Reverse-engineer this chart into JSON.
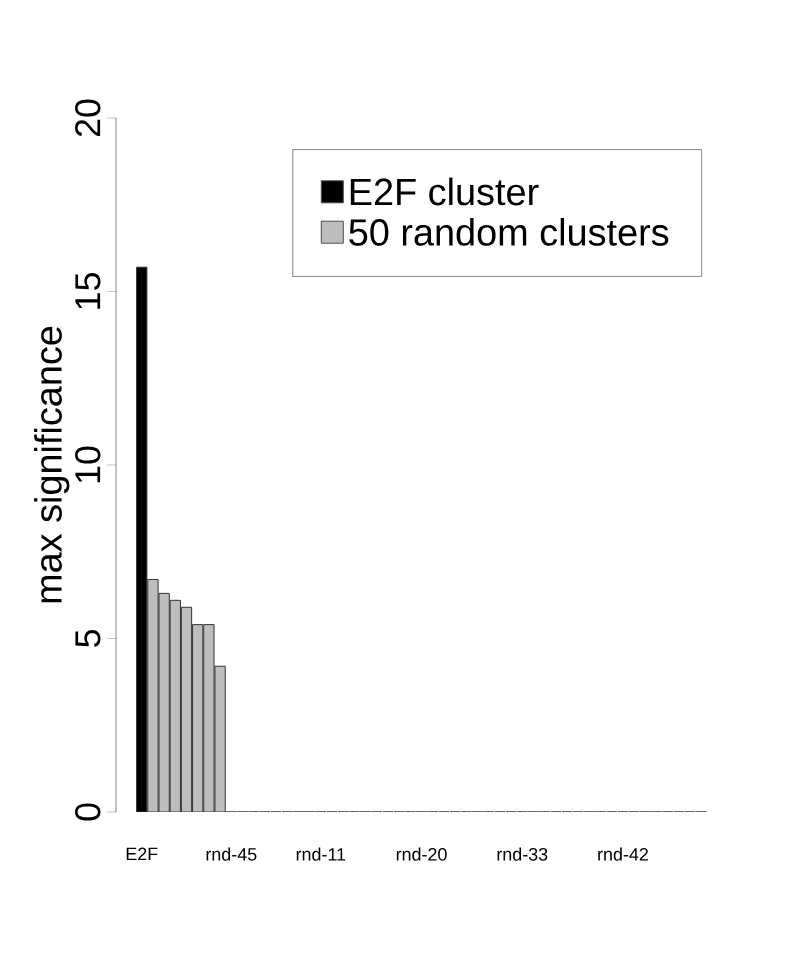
{
  "chart_data": {
    "type": "bar",
    "ylabel": "max significance",
    "categories": [
      "E2F",
      null,
      null,
      null,
      null,
      null,
      null,
      null,
      "rnd-45",
      null,
      null,
      null,
      null,
      null,
      null,
      null,
      "rnd-11",
      null,
      null,
      null,
      null,
      null,
      null,
      null,
      null,
      "rnd-20",
      null,
      null,
      null,
      null,
      null,
      null,
      null,
      null,
      "rnd-33",
      null,
      null,
      null,
      null,
      null,
      null,
      null,
      null,
      "rnd-42",
      null,
      null,
      null,
      null,
      null,
      null,
      null
    ],
    "series": [
      {
        "name": "E2F cluster",
        "color": "#000000",
        "values": [
          15.7,
          null,
          null,
          null,
          null,
          null,
          null,
          null,
          null,
          null,
          null,
          null,
          null,
          null,
          null,
          null,
          null,
          null,
          null,
          null,
          null,
          null,
          null,
          null,
          null,
          null,
          null,
          null,
          null,
          null,
          null,
          null,
          null,
          null,
          null,
          null,
          null,
          null,
          null,
          null,
          null,
          null,
          null,
          null,
          null,
          null,
          null,
          null,
          null,
          null,
          null
        ]
      },
      {
        "name": "50 random clusters",
        "color": "#bebebe",
        "values": [
          null,
          6.7,
          6.3,
          6.1,
          5.9,
          5.4,
          5.4,
          4.2,
          0,
          0,
          0,
          0,
          0,
          0,
          0,
          0,
          0,
          0,
          0,
          0,
          0,
          0,
          0,
          0,
          0,
          0,
          0,
          0,
          0,
          0,
          0,
          0,
          0,
          0,
          0,
          0,
          0,
          0,
          0,
          0,
          0,
          0,
          0,
          0,
          0,
          0,
          0,
          0,
          0,
          0,
          0
        ]
      }
    ],
    "ylim": [
      0,
      20
    ],
    "yticks": [
      0,
      5,
      10,
      15,
      20
    ],
    "legend": "top right"
  }
}
